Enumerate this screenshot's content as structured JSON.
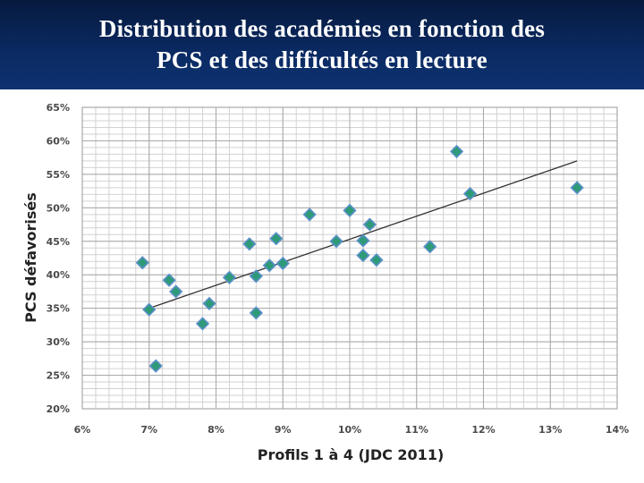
{
  "title": {
    "line1": "Distribution des académies en fonction des",
    "line2": "PCS et des difficultés en lecture"
  },
  "chart_data": {
    "type": "scatter",
    "xlabel": "Profils 1 à 4 (JDC 2011)",
    "ylabel": "PCS défavorisés",
    "xlim": [
      6,
      14
    ],
    "ylim": [
      20,
      65
    ],
    "x_ticks": [
      6,
      7,
      8,
      9,
      10,
      11,
      12,
      13,
      14
    ],
    "x_tick_labels": [
      "6%",
      "7%",
      "8%",
      "9%",
      "10%",
      "11%",
      "12%",
      "13%",
      "14%"
    ],
    "y_ticks": [
      20,
      25,
      30,
      35,
      40,
      45,
      50,
      55,
      60,
      65
    ],
    "y_tick_labels": [
      "20%",
      "25%",
      "30%",
      "35%",
      "40%",
      "45%",
      "50%",
      "55%",
      "60%",
      "65%"
    ],
    "grid": true,
    "minor_grid_x_step": 0.2,
    "minor_grid_y_step": 1,
    "marker": "diamond",
    "marker_color": "#2e9a78",
    "marker_edge_color": "#5a8fc8",
    "trendline": {
      "type": "linear",
      "x": [
        7.0,
        13.4
      ],
      "y": [
        35.0,
        57.0
      ],
      "color": "#333333"
    },
    "points": [
      {
        "x": 6.9,
        "y": 41.8
      },
      {
        "x": 7.0,
        "y": 34.8
      },
      {
        "x": 7.1,
        "y": 26.4
      },
      {
        "x": 7.3,
        "y": 39.2
      },
      {
        "x": 7.4,
        "y": 37.5
      },
      {
        "x": 7.8,
        "y": 32.7
      },
      {
        "x": 7.9,
        "y": 35.7
      },
      {
        "x": 8.2,
        "y": 39.6
      },
      {
        "x": 8.5,
        "y": 44.6
      },
      {
        "x": 8.6,
        "y": 39.8
      },
      {
        "x": 8.6,
        "y": 34.3
      },
      {
        "x": 8.8,
        "y": 41.4
      },
      {
        "x": 8.9,
        "y": 45.4
      },
      {
        "x": 9.0,
        "y": 41.7
      },
      {
        "x": 9.4,
        "y": 49.0
      },
      {
        "x": 9.8,
        "y": 45.0
      },
      {
        "x": 10.0,
        "y": 49.6
      },
      {
        "x": 10.2,
        "y": 45.1
      },
      {
        "x": 10.2,
        "y": 42.9
      },
      {
        "x": 10.3,
        "y": 47.5
      },
      {
        "x": 10.4,
        "y": 42.2
      },
      {
        "x": 11.2,
        "y": 44.2
      },
      {
        "x": 11.6,
        "y": 58.4
      },
      {
        "x": 11.8,
        "y": 52.1
      },
      {
        "x": 13.4,
        "y": 53.0
      }
    ]
  }
}
